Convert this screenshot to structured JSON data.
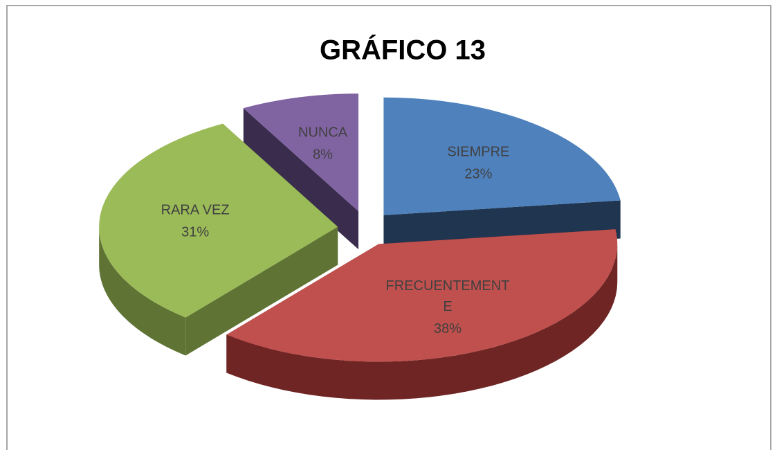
{
  "chart_data": {
    "type": "pie3d",
    "title": "GRÁFICO  13",
    "categories": [
      "SIEMPRE",
      "FRECUENTEMENTE",
      "RARA VEZ",
      "NUNCA"
    ],
    "values": [
      23,
      38,
      31,
      8
    ],
    "value_labels": [
      "23%",
      "38%",
      "31%",
      "8%"
    ],
    "colors": [
      "#4f81bd",
      "#c0504d",
      "#9bbb59",
      "#8064a2"
    ],
    "side_colors": [
      "#1f3550",
      "#6e2523",
      "#5f7334",
      "#3a2c4c"
    ]
  }
}
